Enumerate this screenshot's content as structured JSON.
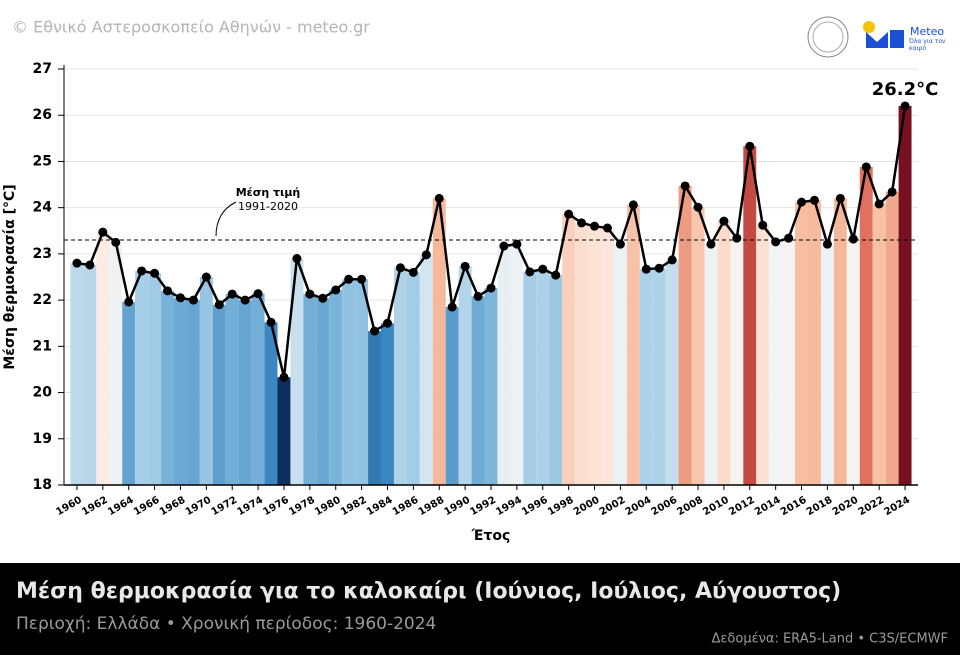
{
  "chart_data": {
    "type": "bar-line",
    "watermark": "© Εθνικό Αστεροσκοπείο Αθηνών - meteo.gr",
    "logo": {
      "name": "Meteo",
      "tagline": "Όλα για τον καιρό"
    },
    "title": "Μέση θερμοκρασία για το καλοκαίρι (Ιούνιος, Ιούλιος, Αύγουστος)",
    "subtitle": "Περιοχή: Ελλάδα • Χρονική περίοδος: 1960-2024",
    "source": "Δεδομένα: ERA5-Land • C3S/ECMWF",
    "x_label": "Έτος",
    "y_label": "Μέση θερμοκρασία [°C]",
    "x": [
      1960,
      1961,
      1962,
      1963,
      1964,
      1965,
      1966,
      1967,
      1968,
      1969,
      1970,
      1971,
      1972,
      1973,
      1974,
      1975,
      1976,
      1977,
      1978,
      1979,
      1980,
      1981,
      1982,
      1983,
      1984,
      1985,
      1986,
      1987,
      1988,
      1989,
      1990,
      1991,
      1992,
      1993,
      1994,
      1995,
      1996,
      1997,
      1998,
      1999,
      2000,
      2001,
      2002,
      2003,
      2004,
      2005,
      2006,
      2007,
      2008,
      2009,
      2010,
      2011,
      2012,
      2013,
      2014,
      2015,
      2016,
      2017,
      2018,
      2019,
      2020,
      2021,
      2022,
      2023,
      2024
    ],
    "values": [
      22.8,
      22.76,
      23.47,
      23.25,
      21.96,
      22.63,
      22.58,
      22.2,
      22.05,
      22.0,
      22.5,
      21.9,
      22.13,
      22.0,
      22.14,
      21.52,
      20.33,
      22.9,
      22.13,
      22.04,
      22.22,
      22.45,
      22.45,
      21.33,
      21.5,
      22.7,
      22.6,
      22.98,
      24.2,
      21.85,
      22.73,
      22.08,
      22.26,
      23.17,
      23.21,
      22.61,
      22.67,
      22.54,
      23.86,
      23.67,
      23.6,
      23.56,
      23.21,
      24.06,
      22.67,
      22.69,
      22.87,
      24.47,
      24.01,
      23.21,
      23.71,
      23.34,
      25.33,
      23.62,
      23.26,
      23.34,
      24.12,
      24.16,
      23.21,
      24.2,
      23.32,
      24.88,
      24.08,
      24.34,
      26.2
    ],
    "value_labels": [
      null,
      null,
      null,
      null,
      null,
      null,
      null,
      null,
      null,
      null,
      null,
      null,
      null,
      null,
      null,
      null,
      null,
      null,
      null,
      null,
      null,
      null,
      null,
      null,
      null,
      null,
      null,
      null,
      null,
      null,
      null,
      null,
      null,
      null,
      null,
      null,
      null,
      null,
      null,
      null,
      null,
      null,
      null,
      null,
      null,
      null,
      null,
      null,
      null,
      null,
      null,
      null,
      null,
      null,
      null,
      null,
      null,
      null,
      null,
      null,
      null,
      null,
      null,
      null,
      "26.2°C"
    ],
    "line_color": "#000000",
    "mean": 23.3,
    "mean_label": "Μέση τιμή",
    "mean_period": "1991-2020",
    "xlim": [
      1959,
      2025
    ],
    "xticks": [
      1960,
      1962,
      1964,
      1966,
      1968,
      1970,
      1972,
      1974,
      1976,
      1978,
      1980,
      1982,
      1984,
      1986,
      1988,
      1990,
      1992,
      1994,
      1996,
      1998,
      2000,
      2002,
      2004,
      2006,
      2008,
      2010,
      2012,
      2014,
      2016,
      2018,
      2020,
      2022,
      2024
    ],
    "ylim": [
      18,
      27
    ],
    "yticks": [
      18,
      19,
      20,
      21,
      22,
      23,
      24,
      25,
      26,
      27
    ],
    "grid": true
  }
}
